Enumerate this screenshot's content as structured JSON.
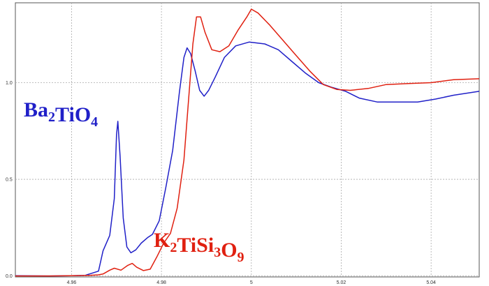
{
  "chart_data": {
    "type": "line",
    "title": "",
    "xlabel": "",
    "ylabel": "",
    "xlim": [
      4.9475,
      5.0507
    ],
    "ylim": [
      -0.005,
      1.413
    ],
    "grid": true,
    "x_ticks": [
      4.96,
      4.98,
      5.0,
      5.02,
      5.04
    ],
    "x_tick_labels": [
      "4.96",
      "4.98",
      "5",
      "5.02",
      "5.04"
    ],
    "y_ticks": [
      0.0,
      0.5,
      1.0
    ],
    "y_tick_labels": [
      "0.0",
      "0.5",
      "1.0"
    ],
    "series": [
      {
        "name_parts": [
          [
            "Ba",
            "2"
          ],
          [
            "Ti",
            ""
          ],
          [
            "O",
            "4"
          ]
        ],
        "color": "#2020c8",
        "x": [
          4.9475,
          4.955,
          4.96,
          4.963,
          4.966,
          4.967,
          4.9685,
          4.9695,
          4.97,
          4.9703,
          4.9708,
          4.9715,
          4.9723,
          4.9732,
          4.9743,
          4.9755,
          4.977,
          4.978,
          4.9795,
          4.981,
          4.9825,
          4.984,
          4.985,
          4.9857,
          4.9865,
          4.9875,
          4.9885,
          4.9895,
          4.9905,
          4.992,
          4.994,
          4.9965,
          4.9995,
          5.003,
          5.006,
          5.009,
          5.012,
          5.015,
          5.018,
          5.021,
          5.024,
          5.028,
          5.033,
          5.037,
          5.041,
          5.045,
          5.0507
        ],
        "y": [
          0.001,
          0.0,
          0.001,
          0.003,
          0.025,
          0.13,
          0.21,
          0.4,
          0.73,
          0.8,
          0.62,
          0.3,
          0.15,
          0.12,
          0.135,
          0.17,
          0.2,
          0.215,
          0.285,
          0.46,
          0.65,
          0.95,
          1.13,
          1.18,
          1.15,
          1.06,
          0.96,
          0.93,
          0.96,
          1.03,
          1.13,
          1.19,
          1.21,
          1.2,
          1.17,
          1.11,
          1.05,
          1.0,
          0.975,
          0.955,
          0.92,
          0.9,
          0.9,
          0.9,
          0.915,
          0.935,
          0.955
        ]
      },
      {
        "name_parts": [
          [
            "K",
            "2"
          ],
          [
            "Ti",
            ""
          ],
          [
            "Si",
            "3"
          ],
          [
            "O",
            "9"
          ]
        ],
        "color": "#e02010",
        "x": [
          4.9475,
          4.955,
          4.96,
          4.964,
          4.966,
          4.967,
          4.9685,
          4.9695,
          4.971,
          4.9725,
          4.9735,
          4.9745,
          4.976,
          4.9775,
          4.979,
          4.9805,
          4.982,
          4.9835,
          4.985,
          4.986,
          4.987,
          4.9878,
          4.9887,
          4.9897,
          4.9912,
          4.993,
          4.995,
          4.997,
          4.999,
          5.0,
          5.0015,
          5.004,
          5.007,
          5.01,
          5.013,
          5.016,
          5.019,
          5.022,
          5.026,
          5.03,
          5.035,
          5.04,
          5.045,
          5.0507
        ],
        "y": [
          0.0,
          0.0,
          0.001,
          0.003,
          0.006,
          0.01,
          0.03,
          0.04,
          0.03,
          0.055,
          0.065,
          0.045,
          0.028,
          0.035,
          0.1,
          0.17,
          0.22,
          0.35,
          0.6,
          0.9,
          1.2,
          1.34,
          1.34,
          1.26,
          1.17,
          1.16,
          1.19,
          1.27,
          1.34,
          1.38,
          1.36,
          1.3,
          1.22,
          1.14,
          1.06,
          0.99,
          0.965,
          0.96,
          0.97,
          0.99,
          0.995,
          1.0,
          1.015,
          1.02
        ]
      }
    ]
  }
}
